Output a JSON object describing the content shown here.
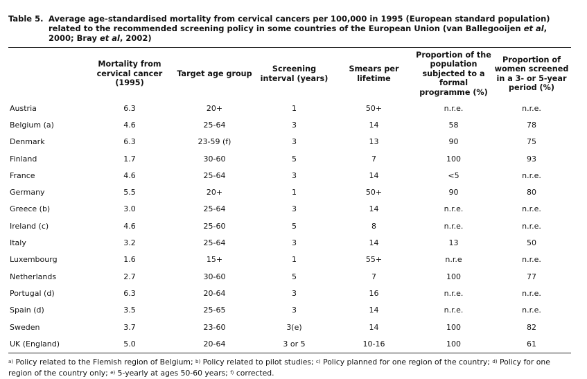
{
  "caption": {
    "label": "Table 5.",
    "text_part1": "Average age-standardised mortality from cervical cancers per 100,000 in 1995 (European standard population) related to the recommended screening policy in some countries of the European Union (van Ballegooijen ",
    "etal1": "et al",
    "text_part2": ", 2000; Bray ",
    "etal2": "et al",
    "text_part3": ", 2002)"
  },
  "columns": [
    "",
    "Mortality from cervical cancer (1995)",
    "Target age group",
    "Screening interval (years)",
    "Smears per lifetime",
    "Proportion of the population subjected to a formal programme (%)",
    "Proportion of women screened in a 3- or 5-year period (%)"
  ],
  "rows": [
    [
      "Austria",
      "6.3",
      "20+",
      "1",
      "50+",
      "n.r.e.",
      "n.r.e."
    ],
    [
      "Belgium (a)",
      "4.6",
      "25-64",
      "3",
      "14",
      "58",
      "78"
    ],
    [
      "Denmark",
      "6.3",
      "23-59 (f)",
      "3",
      "13",
      "90",
      "75"
    ],
    [
      "Finland",
      "1.7",
      "30-60",
      "5",
      "7",
      "100",
      "93"
    ],
    [
      "France",
      "4.6",
      "25-64",
      "3",
      "14",
      "<5",
      "n.r.e."
    ],
    [
      "Germany",
      "5.5",
      "20+",
      "1",
      "50+",
      "90",
      "80"
    ],
    [
      "Greece (b)",
      "3.0",
      "25-64",
      "3",
      "14",
      "n.r.e.",
      "n.r.e."
    ],
    [
      "Ireland (c)",
      "4.6",
      "25-60",
      "5",
      "8",
      "n.r.e.",
      "n.r.e."
    ],
    [
      "Italy",
      "3.2",
      "25-64",
      "3",
      "14",
      "13",
      "50"
    ],
    [
      "Luxembourg",
      "1.6",
      "15+",
      "1",
      "55+",
      "n.r.e",
      "n.r.e."
    ],
    [
      "Netherlands",
      "2.7",
      "30-60",
      "5",
      "7",
      "100",
      "77"
    ],
    [
      "Portugal (d)",
      "6.3",
      "20-64",
      "3",
      "16",
      "n.r.e.",
      "n.r.e."
    ],
    [
      "Spain (d)",
      "3.5",
      "25-65",
      "3",
      "14",
      "n.r.e.",
      "n.r.e."
    ],
    [
      "Sweden",
      "3.7",
      "23-60",
      "3(e)",
      "14",
      "100",
      "82"
    ],
    [
      "UK (England)",
      "5.0",
      "20-64",
      "3 or 5",
      "10-16",
      "100",
      "61"
    ]
  ],
  "footnotes": [
    {
      "mark": "a)",
      "text": " Policy related to the Flemish region of Belgium; "
    },
    {
      "mark": "b)",
      "text": " Policy related to pilot studies; "
    },
    {
      "mark": "c)",
      "text": " Policy planned for one region of the country; "
    },
    {
      "mark": "d)",
      "text": " Policy for one region of the country only; "
    },
    {
      "mark": "e)",
      "text": " 5-yearly at ages 50-60 years; "
    },
    {
      "mark": "f)",
      "text": " corrected."
    }
  ]
}
